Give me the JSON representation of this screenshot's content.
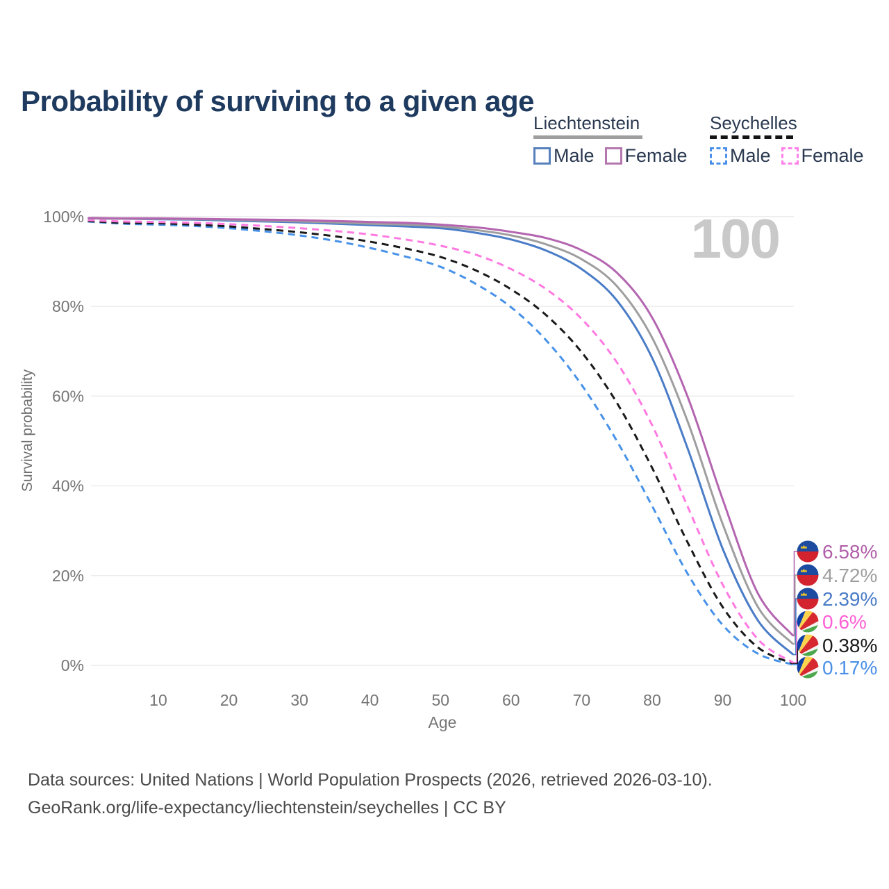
{
  "title": "Probability of surviving to a given age",
  "watermark_age": "100",
  "legend": {
    "groups": [
      {
        "country": "Liechtenstein",
        "line_style": "solid",
        "line_color": "#9e9e9e",
        "items": [
          {
            "label": "Male",
            "color": "#5580bb",
            "dashed": false
          },
          {
            "label": "Female",
            "color": "#b377ae",
            "dashed": false
          }
        ]
      },
      {
        "country": "Seychelles",
        "line_style": "dashed",
        "line_color": "#141414",
        "items": [
          {
            "label": "Male",
            "color": "#4a90e8",
            "dashed": true
          },
          {
            "label": "Female",
            "color": "#ff80e8",
            "dashed": true
          }
        ]
      }
    ]
  },
  "chart_data": {
    "type": "line",
    "title": "Probability of surviving to a given age",
    "xlabel": "Age",
    "ylabel": "Survival probability",
    "xlim": [
      0,
      100
    ],
    "ylim": [
      0,
      100
    ],
    "grid": "horizontal",
    "legend_position": "top-right",
    "xticks": [
      10,
      20,
      30,
      40,
      50,
      60,
      70,
      80,
      90,
      100
    ],
    "yticks": [
      {
        "value": 0,
        "label": "0%"
      },
      {
        "value": 20,
        "label": "20%"
      },
      {
        "value": 40,
        "label": "40%"
      },
      {
        "value": 60,
        "label": "60%"
      },
      {
        "value": 80,
        "label": "80%"
      },
      {
        "value": 100,
        "label": "100%"
      }
    ],
    "x": [
      0,
      5,
      10,
      15,
      20,
      25,
      30,
      35,
      40,
      45,
      50,
      55,
      60,
      65,
      70,
      75,
      80,
      85,
      90,
      95,
      100
    ],
    "series": [
      {
        "name": "Liechtenstein Female",
        "country": "Liechtenstein",
        "sex": "Female",
        "color": "#b465b0",
        "label_color": "#b05fa8",
        "dashed": false,
        "flag": "liechtenstein",
        "end_label": "6.58%",
        "values": [
          99.7,
          99.6,
          99.6,
          99.5,
          99.4,
          99.3,
          99.2,
          99.0,
          98.8,
          98.6,
          98.2,
          97.6,
          96.6,
          95.2,
          92.5,
          87.5,
          77.5,
          60.0,
          37.0,
          16.0,
          6.58
        ]
      },
      {
        "name": "Liechtenstein Both sexes",
        "country": "Liechtenstein",
        "sex": "Both",
        "color": "#9e9e9e",
        "label_color": "#9e9e9e",
        "dashed": false,
        "flag": "liechtenstein",
        "end_label": "4.72%",
        "values": [
          99.6,
          99.5,
          99.5,
          99.4,
          99.3,
          99.1,
          98.9,
          98.7,
          98.4,
          98.2,
          97.8,
          97.0,
          95.8,
          93.8,
          90.5,
          84.5,
          73.0,
          54.5,
          31.5,
          13.0,
          4.72
        ]
      },
      {
        "name": "Liechtenstein Male",
        "country": "Liechtenstein",
        "sex": "Male",
        "color": "#4a7cc7",
        "label_color": "#4a7cc7",
        "dashed": false,
        "flag": "liechtenstein",
        "end_label": "2.39%",
        "values": [
          99.6,
          99.5,
          99.4,
          99.3,
          99.1,
          98.9,
          98.7,
          98.4,
          98.1,
          97.8,
          97.4,
          96.4,
          94.9,
          92.4,
          88.3,
          81.3,
          68.5,
          48.5,
          26.0,
          10.0,
          2.39
        ]
      },
      {
        "name": "Seychelles Female",
        "country": "Seychelles",
        "sex": "Female",
        "color": "#ff7ae1",
        "label_color": "#ff5fd6",
        "dashed": true,
        "flag": "seychelles",
        "end_label": "0.6%",
        "values": [
          99.2,
          98.9,
          98.8,
          98.6,
          98.3,
          97.9,
          97.4,
          96.8,
          96.0,
          94.9,
          93.5,
          91.5,
          88.3,
          83.8,
          77.2,
          67.5,
          53.5,
          35.5,
          18.0,
          5.8,
          0.6
        ]
      },
      {
        "name": "Seychelles Both sexes",
        "country": "Seychelles",
        "sex": "Both",
        "color": "#1a1a1a",
        "label_color": "#1a1a1a",
        "dashed": true,
        "flag": "seychelles",
        "end_label": "0.38%",
        "values": [
          99.0,
          98.6,
          98.5,
          98.2,
          97.8,
          97.2,
          96.5,
          95.6,
          94.4,
          92.9,
          91.0,
          88.0,
          83.8,
          78.0,
          69.8,
          58.5,
          44.0,
          27.5,
          13.0,
          4.0,
          0.38
        ]
      },
      {
        "name": "Seychelles Male",
        "country": "Seychelles",
        "sex": "Male",
        "color": "#4792e8",
        "label_color": "#4a90e8",
        "dashed": true,
        "flag": "seychelles",
        "end_label": "0.17%",
        "values": [
          98.9,
          98.4,
          98.2,
          97.9,
          97.4,
          96.7,
          95.8,
          94.6,
          93.0,
          91.1,
          88.8,
          85.0,
          79.8,
          72.4,
          62.5,
          50.0,
          35.5,
          20.5,
          9.0,
          2.6,
          0.17
        ]
      }
    ]
  },
  "footer": {
    "line1": "Data sources: United Nations | World Population Prospects (2026, retrieved 2026-03-10).",
    "line2": "GeoRank.org/life-expectancy/liechtenstein/seychelles | CC BY"
  }
}
